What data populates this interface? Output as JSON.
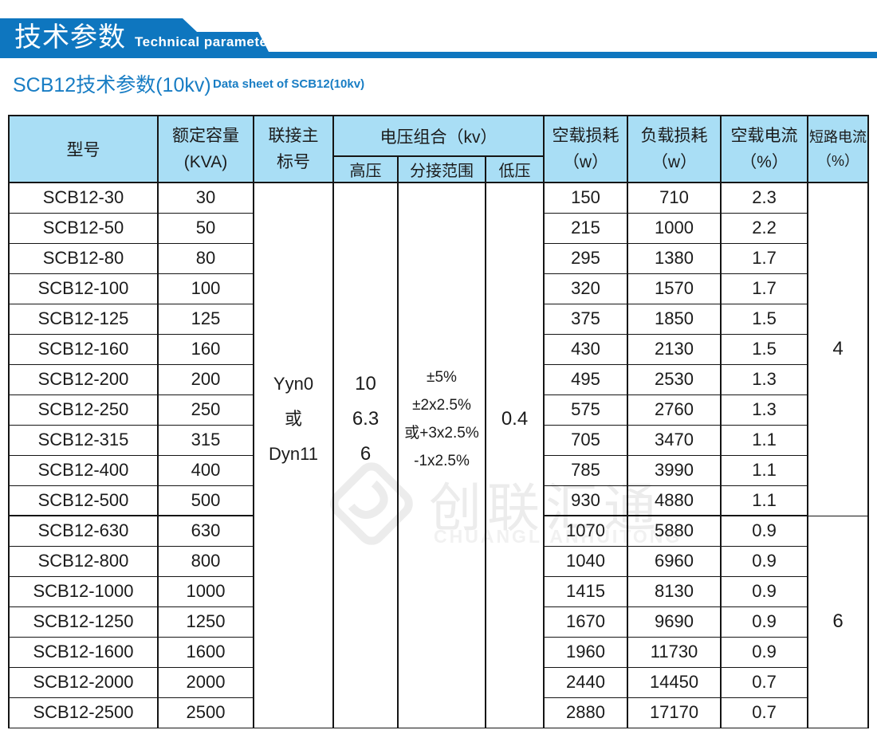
{
  "theme": {
    "banner_blue": "#0e76bf",
    "title_blue": "#187dc4",
    "header_bg": "#a9def5",
    "border_color": "#151515",
    "watermark_gray": "#ececec"
  },
  "banner": {
    "title": "技术参数",
    "subtitle": "Technical parameter"
  },
  "intro": {
    "title_zh": "SCB12技术参数(10kv)",
    "title_en": "Data sheet of SCB12(10kv)"
  },
  "watermark": {
    "logo": "diamond-logo",
    "zh": "创联汇通",
    "en": "CHUANGLIANHUITONG"
  },
  "table": {
    "headers": {
      "model": "型号",
      "capacity": [
        "额定容量",
        "(KVA)"
      ],
      "connection": [
        "联接主",
        "标号"
      ],
      "voltage_group": "电压组合（kv）",
      "hv": "高压",
      "tap_range": "分接范围",
      "lv": "低压",
      "no_load_loss": [
        "空载损耗",
        "（w）"
      ],
      "load_loss": [
        "负载损耗",
        "（w）"
      ],
      "no_load_current": [
        "空载电流",
        "（%）"
      ],
      "short_circuit": [
        "短路电流",
        "（%）"
      ]
    },
    "merged": {
      "connection": [
        "Yyn0",
        "或",
        "Dyn11"
      ],
      "hv": [
        "10",
        "6.3",
        "6"
      ],
      "tap_range": [
        "±5%",
        "±2x2.5%",
        "或+3x2.5%",
        "-1x2.5%"
      ],
      "lv": "0.4",
      "short_circuit_group1": "4",
      "short_circuit_group2": "6"
    },
    "rows": [
      {
        "model": "SCB12-30",
        "capacity": "30",
        "no_load_loss": "150",
        "load_loss": "710",
        "no_load_current": "2.3"
      },
      {
        "model": "SCB12-50",
        "capacity": "50",
        "no_load_loss": "215",
        "load_loss": "1000",
        "no_load_current": "2.2"
      },
      {
        "model": "SCB12-80",
        "capacity": "80",
        "no_load_loss": "295",
        "load_loss": "1380",
        "no_load_current": "1.7"
      },
      {
        "model": "SCB12-100",
        "capacity": "100",
        "no_load_loss": "320",
        "load_loss": "1570",
        "no_load_current": "1.7"
      },
      {
        "model": "SCB12-125",
        "capacity": "125",
        "no_load_loss": "375",
        "load_loss": "1850",
        "no_load_current": "1.5"
      },
      {
        "model": "SCB12-160",
        "capacity": "160",
        "no_load_loss": "430",
        "load_loss": "2130",
        "no_load_current": "1.5"
      },
      {
        "model": "SCB12-200",
        "capacity": "200",
        "no_load_loss": "495",
        "load_loss": "2530",
        "no_load_current": "1.3"
      },
      {
        "model": "SCB12-250",
        "capacity": "250",
        "no_load_loss": "575",
        "load_loss": "2760",
        "no_load_current": "1.3"
      },
      {
        "model": "SCB12-315",
        "capacity": "315",
        "no_load_loss": "705",
        "load_loss": "3470",
        "no_load_current": "1.1"
      },
      {
        "model": "SCB12-400",
        "capacity": "400",
        "no_load_loss": "785",
        "load_loss": "3990",
        "no_load_current": "1.1"
      },
      {
        "model": "SCB12-500",
        "capacity": "500",
        "no_load_loss": "930",
        "load_loss": "4880",
        "no_load_current": "1.1"
      },
      {
        "model": "SCB12-630",
        "capacity": "630",
        "no_load_loss": "1070",
        "load_loss": "5880",
        "no_load_current": "0.9"
      },
      {
        "model": "SCB12-800",
        "capacity": "800",
        "no_load_loss": "1040",
        "load_loss": "6960",
        "no_load_current": "0.9"
      },
      {
        "model": "SCB12-1000",
        "capacity": "1000",
        "no_load_loss": "1415",
        "load_loss": "8130",
        "no_load_current": "0.9"
      },
      {
        "model": "SCB12-1250",
        "capacity": "1250",
        "no_load_loss": "1670",
        "load_loss": "9690",
        "no_load_current": "0.9"
      },
      {
        "model": "SCB12-1600",
        "capacity": "1600",
        "no_load_loss": "1960",
        "load_loss": "11730",
        "no_load_current": "0.9"
      },
      {
        "model": "SCB12-2000",
        "capacity": "2000",
        "no_load_loss": "2440",
        "load_loss": "14450",
        "no_load_current": "0.7"
      },
      {
        "model": "SCB12-2500",
        "capacity": "2500",
        "no_load_loss": "2880",
        "load_loss": "17170",
        "no_load_current": "0.7"
      }
    ]
  }
}
